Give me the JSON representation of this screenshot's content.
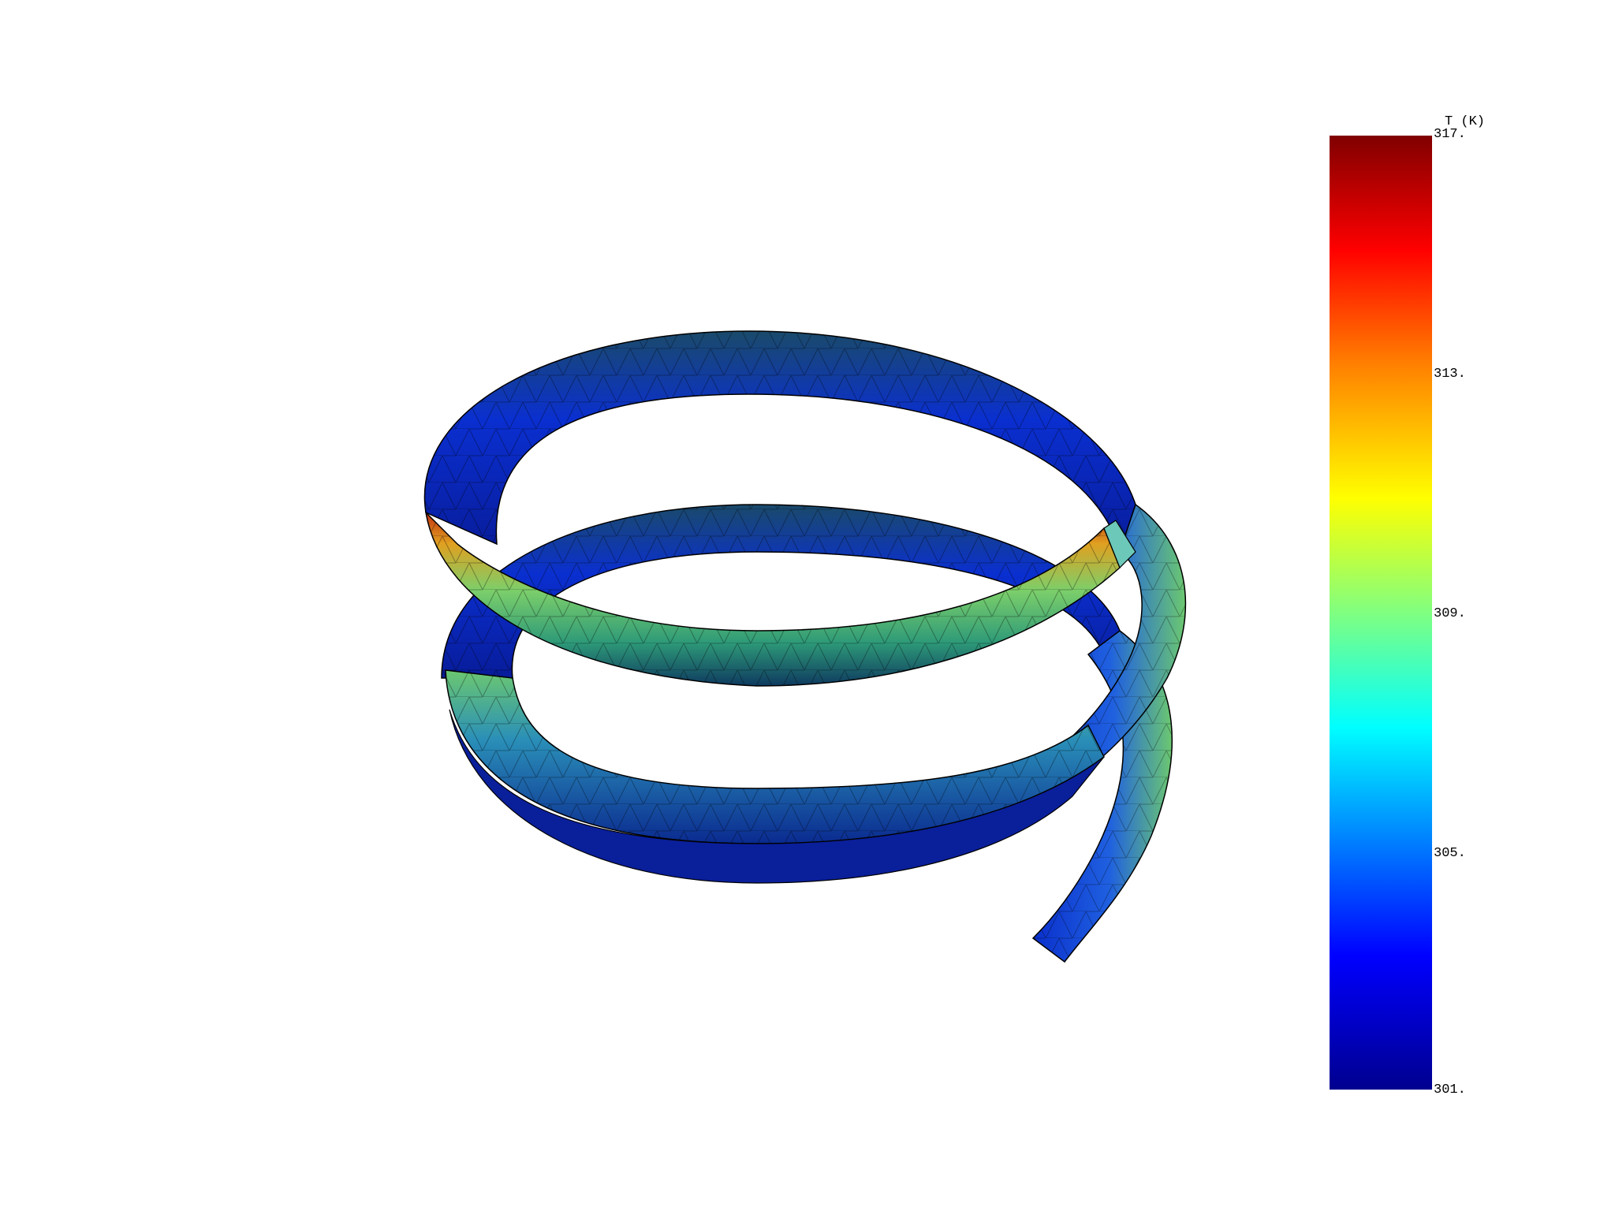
{
  "colorbar": {
    "title": "T (K)",
    "tick_labels": [
      "317.",
      "313.",
      "309.",
      "305.",
      "301."
    ],
    "colormap": "jet",
    "colors": [
      "#00008f",
      "#0000ff",
      "#00ffff",
      "#80ff80",
      "#ffff00",
      "#ff8000",
      "#ff0000",
      "#800000"
    ]
  },
  "model": {
    "shape": "helical-ribbon",
    "edge_color": "#000000",
    "cool_color": "#0a1fb5",
    "hot_color": "#e03010"
  }
}
